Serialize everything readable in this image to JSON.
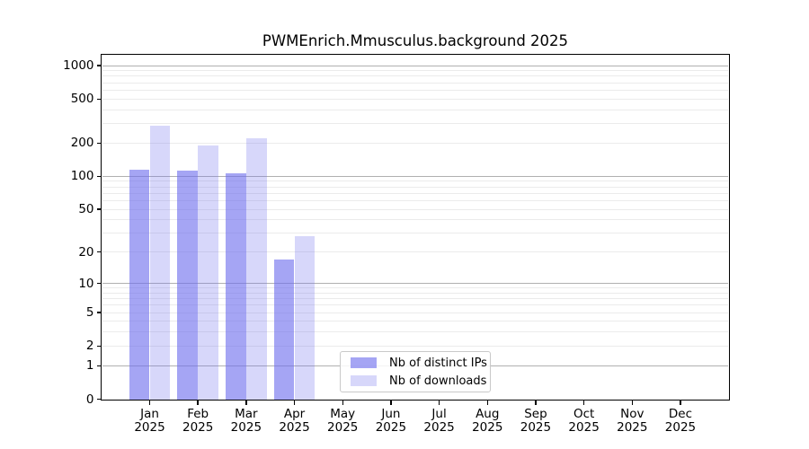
{
  "chart_data": {
    "type": "bar",
    "title": "PWMEnrich.Mmusculus.background 2025",
    "categories": [
      {
        "month": "Jan",
        "year": "2025"
      },
      {
        "month": "Feb",
        "year": "2025"
      },
      {
        "month": "Mar",
        "year": "2025"
      },
      {
        "month": "Apr",
        "year": "2025"
      },
      {
        "month": "May",
        "year": "2025"
      },
      {
        "month": "Jun",
        "year": "2025"
      },
      {
        "month": "Jul",
        "year": "2025"
      },
      {
        "month": "Aug",
        "year": "2025"
      },
      {
        "month": "Sep",
        "year": "2025"
      },
      {
        "month": "Oct",
        "year": "2025"
      },
      {
        "month": "Nov",
        "year": "2025"
      },
      {
        "month": "Dec",
        "year": "2025"
      }
    ],
    "series": [
      {
        "name": "Nb of distinct IPs",
        "color": "rgba(110,110,238,0.62)",
        "values": [
          114,
          112,
          106,
          17,
          0,
          0,
          0,
          0,
          0,
          0,
          0,
          0
        ]
      },
      {
        "name": "Nb of downloads",
        "color": "rgba(110,110,238,0.28)",
        "values": [
          285,
          189,
          220,
          28,
          0,
          0,
          0,
          0,
          0,
          0,
          0,
          0
        ]
      }
    ],
    "y_axis": {
      "scale": "log1p",
      "tick_values": [
        0,
        1,
        2,
        5,
        10,
        20,
        50,
        100,
        200,
        500,
        1000
      ],
      "tick_labels": [
        "0",
        "1",
        "2",
        "5",
        "10",
        "20",
        "50",
        "100",
        "200",
        "500",
        "1000"
      ],
      "max": 1250
    },
    "x_axis": {
      "tick_count": 12
    },
    "grid": {
      "horizontal": true,
      "vertical": false,
      "major_at": [
        1,
        10,
        100,
        1000
      ],
      "minor_color": "#ebebeb",
      "major_color": "#b0b0b0"
    },
    "legend": {
      "position": "inside-bottom-center",
      "border_color": "#c9c9c9"
    }
  }
}
